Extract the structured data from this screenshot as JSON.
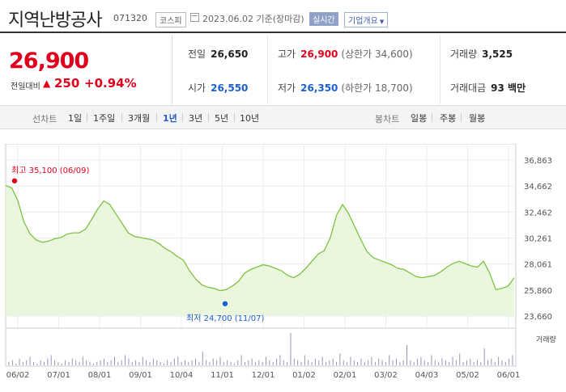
{
  "header": {
    "stock_name": "지역난방공사",
    "stock_code": "071320",
    "market": "코스피",
    "base_date": "2023.06.02 기준(장마감)",
    "realtime_label": "실시간",
    "company_info_label": "기업개요"
  },
  "price": {
    "current": "26,900",
    "change_label": "전일대비",
    "change_arrow": "▲",
    "change_value": "250",
    "change_percent": "+0.94%"
  },
  "info": {
    "prev_close_label": "전일",
    "prev_close": "26,650",
    "high_label": "고가",
    "high": "26,900",
    "upper_limit": "(상한가 34,600)",
    "volume_label": "거래량",
    "volume": "3,525",
    "open_label": "시가",
    "open": "26,550",
    "low_label": "저가",
    "low": "26,350",
    "lower_limit": "(하한가 18,700)",
    "amount_label": "거래대금",
    "amount": "93 백만"
  },
  "period_bar": {
    "line_chart_label": "선차트",
    "periods": [
      "1일",
      "1주일",
      "3개월",
      "1년",
      "3년",
      "5년",
      "10년"
    ],
    "active_period": "1년",
    "candle_chart_label": "봉차트",
    "candles": [
      "일봉",
      "주봉",
      "월봉"
    ]
  },
  "colors": {
    "up_red": "#e0001b",
    "down_blue": "#1a5fd0",
    "line_green": "#7dc242",
    "area_green": "#e6f6d8",
    "volume_bar": "#9a93b8"
  },
  "chart_data": {
    "type": "area",
    "y_ticks": [
      "36,863",
      "34,662",
      "32,462",
      "30,261",
      "28,061",
      "25,860",
      "23,660"
    ],
    "ylim": [
      23660,
      36863
    ],
    "x_ticks": [
      "06/02",
      "07/01",
      "08/01",
      "09/01",
      "10/04",
      "11/01",
      "12/01",
      "01/02",
      "02/01",
      "03/02",
      "04/03",
      "05/02",
      "06/01"
    ],
    "series": [
      {
        "values": [
          34700,
          34500,
          33400,
          31600,
          30600,
          30100,
          29900,
          30000,
          30200,
          30300,
          30600,
          30700,
          30700,
          31000,
          31800,
          32700,
          33400,
          33100,
          32300,
          31500,
          30700,
          30400,
          30300,
          30200,
          30100,
          29800,
          29400,
          29100,
          28700,
          28400,
          27500,
          26800,
          26300,
          26100,
          26000,
          25800,
          25900,
          26200,
          26600,
          27300,
          27600,
          27800,
          28000,
          27900,
          27700,
          27500,
          27100,
          26900,
          27200,
          27700,
          28300,
          28900,
          29200,
          30300,
          32200,
          33100,
          32300,
          31200,
          30100,
          29100,
          28600,
          28400,
          28200,
          28000,
          27700,
          27600,
          27300,
          27000,
          26900,
          27000,
          27100,
          27400,
          27800,
          28100,
          28300,
          28100,
          27900,
          27800,
          28300,
          27300,
          25900,
          26000,
          26200,
          26900
        ]
      }
    ],
    "annotations": [
      {
        "label": "최고 35,100 (06/09)",
        "value": 35100
      },
      {
        "label": "최저 24,700 (11/07)",
        "value": 24700
      }
    ],
    "volume_label": "거래량",
    "volume": [
      2,
      3,
      1,
      4,
      2,
      3,
      5,
      2,
      1,
      3,
      2,
      4,
      6,
      3,
      2,
      1,
      3,
      2,
      4,
      3,
      2,
      5,
      3,
      2,
      1,
      2,
      3,
      4,
      2,
      3,
      5,
      2,
      3,
      6,
      4,
      2,
      3,
      2,
      5,
      3,
      2,
      4,
      3,
      2,
      1,
      3,
      2,
      4,
      5,
      2,
      3,
      2,
      3,
      4,
      2,
      8,
      3,
      2,
      4,
      3,
      5,
      2,
      3,
      2,
      1,
      3,
      6,
      2,
      3,
      4,
      2,
      3,
      2,
      5,
      3,
      2,
      4,
      6,
      3,
      2,
      19,
      4,
      3,
      2,
      6,
      3,
      2,
      4,
      3,
      5,
      2,
      3,
      4,
      2,
      7,
      3,
      2,
      5,
      3,
      2,
      4,
      2,
      3,
      5,
      2,
      4,
      3,
      2,
      6,
      3,
      4,
      2,
      3,
      12,
      3,
      2,
      4,
      5,
      3,
      2,
      6,
      3,
      2,
      4,
      3,
      2,
      5,
      3,
      7,
      2,
      3,
      4,
      2,
      3,
      2,
      10,
      3,
      4,
      2,
      5,
      3,
      2,
      4,
      6
    ]
  }
}
